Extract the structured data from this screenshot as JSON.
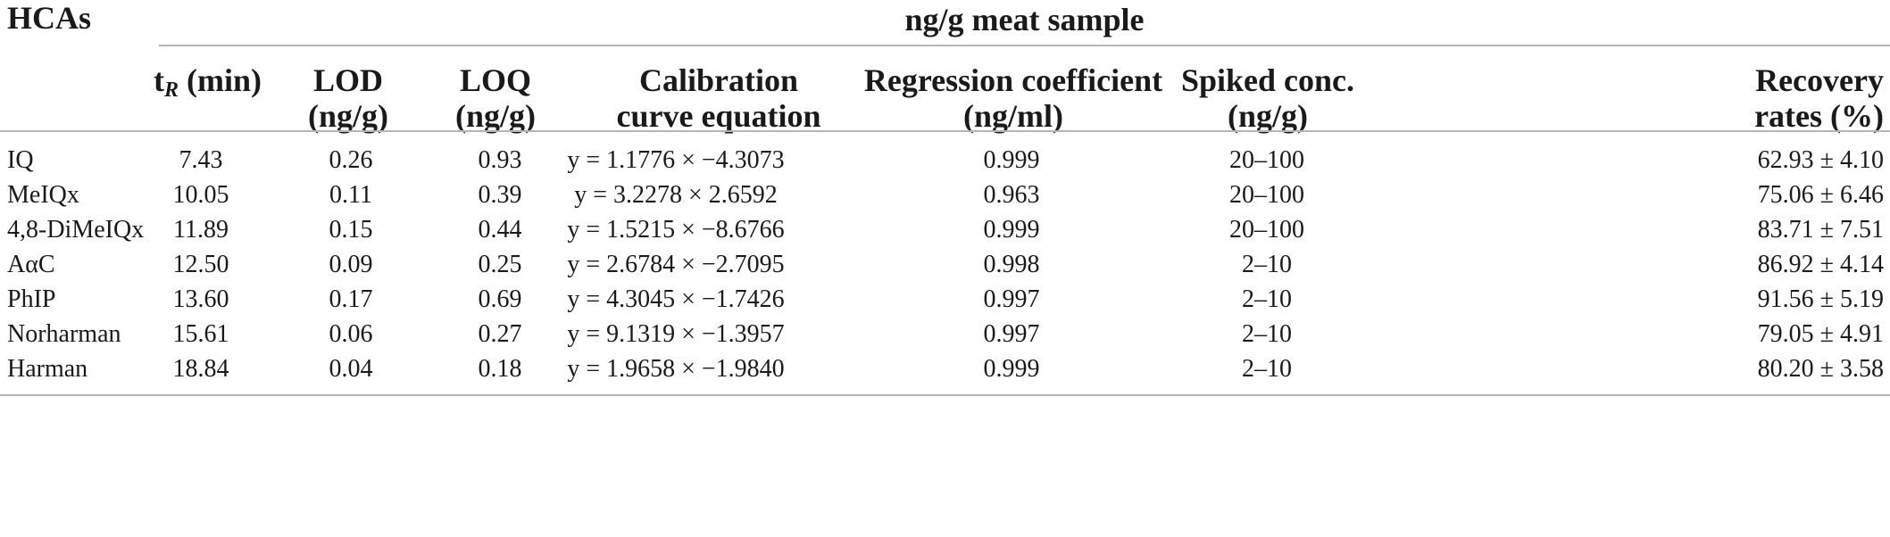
{
  "table": {
    "stub_header": "HCAs",
    "group_header": "ng/g meat sample",
    "columns": [
      {
        "line1": "t",
        "sub": "R",
        "line1_rest": " (min)",
        "line2": ""
      },
      {
        "line1": "LOD",
        "line2": "(ng/g)"
      },
      {
        "line1": "LOQ",
        "line2": "(ng/g)"
      },
      {
        "line1": "Calibration",
        "line2": "curve equation"
      },
      {
        "line1": "Regression coefficient",
        "line2": "(ng/ml)"
      },
      {
        "line1": "Spiked conc.",
        "line2": "(ng/g)"
      },
      {
        "line1": "Recovery",
        "line2": "rates (%)"
      }
    ],
    "rows": [
      {
        "name": "IQ",
        "cells": [
          "7.43",
          "0.26",
          "0.93",
          "y = 1.1776 × −4.3073",
          "0.999",
          "20–100",
          "62.93 ± 4.10"
        ]
      },
      {
        "name": "MeIQx",
        "cells": [
          "10.05",
          "0.11",
          "0.39",
          "y = 3.2278 × 2.6592",
          "0.963",
          "20–100",
          "75.06 ± 6.46"
        ]
      },
      {
        "name": "4,8-DiMeIQx",
        "cells": [
          "11.89",
          "0.15",
          "0.44",
          "y = 1.5215 × −8.6766",
          "0.999",
          "20–100",
          "83.71 ± 7.51"
        ]
      },
      {
        "name": "AαC",
        "cells": [
          "12.50",
          "0.09",
          "0.25",
          "y = 2.6784 × −2.7095",
          "0.998",
          "2–10",
          "86.92 ± 4.14"
        ]
      },
      {
        "name": "PhIP",
        "cells": [
          "13.60",
          "0.17",
          "0.69",
          "y = 4.3045 × −1.7426",
          "0.997",
          "2–10",
          "91.56 ± 5.19"
        ]
      },
      {
        "name": "Norharman",
        "cells": [
          "15.61",
          "0.06",
          "0.27",
          "y = 9.1319 × −1.3957",
          "0.997",
          "2–10",
          "79.05 ± 4.91"
        ]
      },
      {
        "name": "Harman",
        "cells": [
          "18.84",
          "0.04",
          "0.18",
          "y = 1.9658 × −1.9840",
          "0.999",
          "2–10",
          "80.20 ± 3.58"
        ]
      }
    ]
  }
}
